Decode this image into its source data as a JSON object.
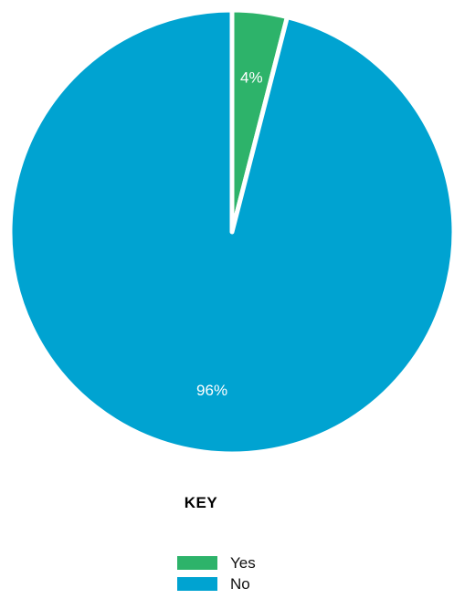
{
  "chart_data": {
    "type": "pie",
    "slices": [
      {
        "label": "Yes",
        "value": 4,
        "display": "4%",
        "color": "#2db36a"
      },
      {
        "label": "No",
        "value": 96,
        "display": "96%",
        "color": "#00a3d1"
      }
    ],
    "start": "12 o'clock, clockwise",
    "legend": {
      "title": "KEY",
      "placement": "bottom-center",
      "items": [
        {
          "label": "Yes",
          "color": "#2db36a"
        },
        {
          "label": "No",
          "color": "#00a3d1"
        }
      ]
    }
  }
}
